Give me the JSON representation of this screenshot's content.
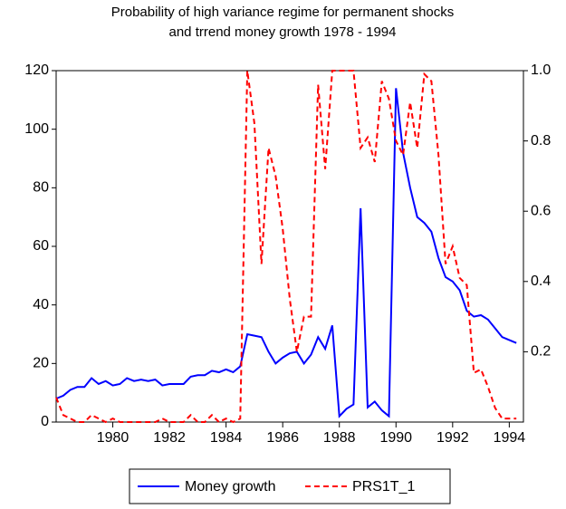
{
  "chart_data": {
    "type": "line",
    "title_lines": [
      "Probability of high variance regime for permanent  shocks",
      "and trrend money growth 1978 - 1994"
    ],
    "x": [
      1978,
      1978.25,
      1978.5,
      1978.75,
      1979,
      1979.25,
      1979.5,
      1979.75,
      1980,
      1980.25,
      1980.5,
      1980.75,
      1981,
      1981.25,
      1981.5,
      1981.75,
      1982,
      1982.25,
      1982.5,
      1982.75,
      1983,
      1983.25,
      1983.5,
      1983.75,
      1984,
      1984.25,
      1984.5,
      1984.75,
      1985,
      1985.25,
      1985.5,
      1985.75,
      1986,
      1986.25,
      1986.5,
      1986.75,
      1987,
      1987.25,
      1987.5,
      1987.75,
      1988,
      1988.25,
      1988.5,
      1988.75,
      1989,
      1989.25,
      1989.5,
      1989.75,
      1990,
      1990.25,
      1990.5,
      1990.75,
      1991,
      1991.25,
      1991.5,
      1991.75,
      1992,
      1992.25,
      1992.5,
      1992.75,
      1993,
      1993.25,
      1993.5,
      1993.75,
      1994,
      1994.25
    ],
    "series": [
      {
        "name": "Money growth",
        "color": "#0000ff",
        "dash": false,
        "values": [
          8,
          9,
          11,
          12,
          12,
          15,
          13,
          14,
          12.5,
          13,
          15,
          14,
          14.5,
          14,
          14.5,
          12.5,
          13,
          13,
          13,
          15.5,
          16,
          16,
          17.5,
          17,
          18,
          17,
          19,
          30,
          29.5,
          29,
          24,
          20,
          22,
          23.5,
          24,
          20,
          23,
          29,
          25,
          33,
          2,
          4.5,
          6,
          73,
          5,
          7,
          4,
          2,
          114,
          92,
          80,
          70,
          68,
          65,
          56,
          49.5,
          48,
          45,
          38,
          36,
          36.5,
          35,
          32,
          29,
          28,
          27
        ]
      },
      {
        "name": "PRS1T_1",
        "color": "#ff0000",
        "dash": true,
        "axis": "y2",
        "values": [
          0.07,
          0.02,
          0.01,
          0,
          0,
          0.02,
          0.01,
          0,
          0.01,
          0,
          0,
          0,
          0,
          0,
          0,
          0.01,
          0,
          0,
          0,
          0.02,
          0,
          0,
          0.02,
          0,
          0.01,
          0,
          0.01,
          1,
          0.85,
          0.45,
          0.78,
          0.7,
          0.55,
          0.35,
          0.2,
          0.3,
          0.3,
          0.96,
          0.72,
          1,
          1,
          1,
          1,
          0.78,
          0.81,
          0.74,
          0.97,
          0.92,
          0.8,
          0.76,
          0.91,
          0.78,
          0.99,
          0.97,
          0.76,
          0.45,
          0.5,
          0.41,
          0.39,
          0.14,
          0.15,
          0.1,
          0.04,
          0.01,
          0.01,
          0.01
        ]
      }
    ],
    "xlim": [
      1978,
      1994.5
    ],
    "xticks": [
      1980,
      1982,
      1984,
      1986,
      1988,
      1990,
      1992,
      1994
    ],
    "ylim": [
      0,
      120
    ],
    "yticks": [
      0,
      20,
      40,
      60,
      80,
      100,
      120
    ],
    "y2lim": [
      0,
      1
    ],
    "y2ticks": [
      0.2,
      0.4,
      0.6,
      0.8,
      {
        "value": 1,
        "label": "1.0"
      }
    ],
    "legend": "bottom"
  }
}
